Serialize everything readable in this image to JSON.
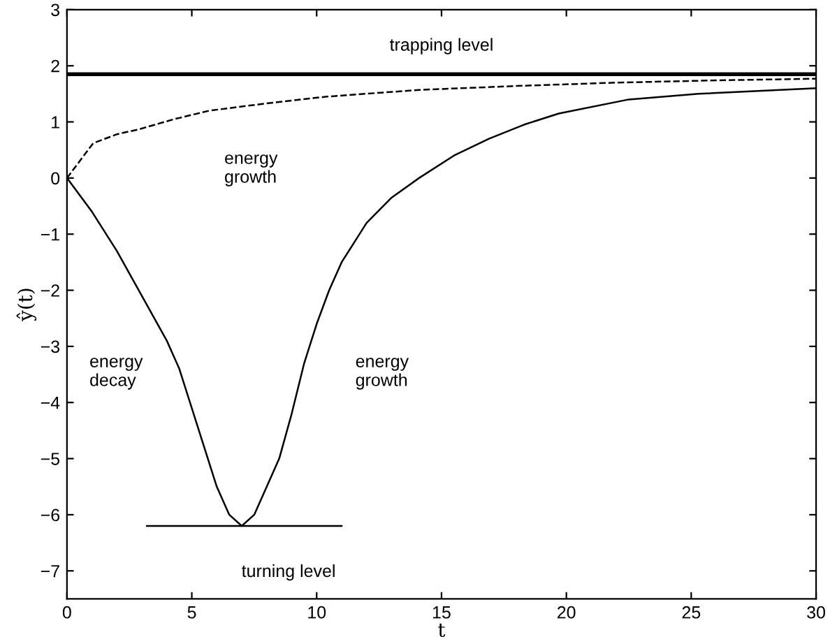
{
  "chart_data": {
    "type": "line",
    "xlabel": "t",
    "ylabel": "ŷ(t)",
    "xlim": [
      0,
      30
    ],
    "ylim": [
      -7.5,
      3
    ],
    "xticks": [
      0,
      5,
      10,
      15,
      20,
      25,
      30
    ],
    "yticks": [
      -7,
      -6,
      -5,
      -4,
      -3,
      -2,
      -1,
      0,
      1,
      2,
      3
    ],
    "grid": false,
    "legend": false,
    "series": [
      {
        "color": "#000000",
        "line_style": "solid",
        "x": [
          0,
          1,
          2,
          3,
          4,
          4.5,
          5,
          5.5,
          6,
          6.5,
          7,
          7.5,
          8,
          8.5,
          9,
          9.5,
          10,
          10.5,
          11,
          12,
          13,
          14.1,
          15.5,
          16.9,
          18.3,
          19.7,
          22.5,
          25.3,
          30
        ],
        "values": [
          0,
          -0.6,
          -1.3,
          -2.1,
          -2.9,
          -3.4,
          -4.1,
          -4.8,
          -5.5,
          -6.0,
          -6.2,
          -6.0,
          -5.5,
          -5.0,
          -4.2,
          -3.3,
          -2.6,
          -2.0,
          -1.5,
          -0.8,
          -0.35,
          0,
          0.4,
          0.7,
          0.95,
          1.15,
          1.4,
          1.5,
          1.6
        ]
      },
      {
        "color": "#000000",
        "line_style": "dashed",
        "x": [
          0,
          1.05,
          2,
          2.9,
          4.3,
          5.7,
          8,
          10.4,
          14.1,
          18,
          22,
          26,
          30
        ],
        "values": [
          0,
          0.62,
          0.78,
          0.87,
          1.05,
          1.2,
          1.33,
          1.45,
          1.57,
          1.64,
          1.7,
          1.74,
          1.77
        ]
      },
      {
        "color": "#000000",
        "line_style": "solid",
        "x": [
          3.2,
          11
        ],
        "values": [
          -6.2,
          -6.2
        ]
      }
    ],
    "ref_lines": [
      {
        "axis": "y",
        "value": 1.85,
        "label": "trapping level",
        "color": "#000000"
      }
    ],
    "annotations": [
      "energy\ngrowth",
      "energy\ndecay",
      "energy\ngrowth",
      "turning level"
    ]
  }
}
